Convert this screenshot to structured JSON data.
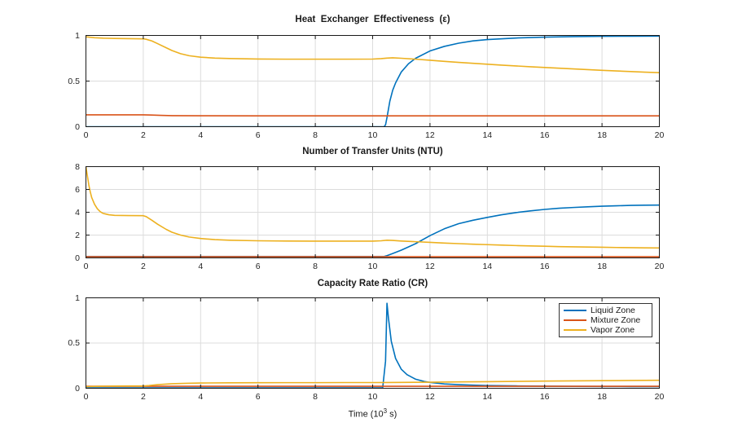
{
  "figure": {
    "xlabel": {
      "prefix": "Time  (10",
      "sup": "3",
      "suffix": "  s)"
    }
  },
  "colors": {
    "liquid": "#0072BD",
    "mixture": "#D95319",
    "vapor": "#EDB120",
    "grid": "#dcdcdc",
    "axis": "#1a1a1a",
    "text": "#262626"
  },
  "legend": {
    "entries": [
      {
        "label": "Liquid Zone",
        "color": "#0072BD"
      },
      {
        "label": "Mixture Zone",
        "color": "#D95319"
      },
      {
        "label": "Vapor Zone",
        "color": "#EDB120"
      }
    ]
  },
  "chart_data": [
    {
      "type": "line",
      "title": "Heat  Exchanger  Effectiveness  (ε)",
      "xlim": [
        0,
        20
      ],
      "ylim": [
        0,
        1
      ],
      "xticks": [
        0,
        2,
        4,
        6,
        8,
        10,
        12,
        14,
        16,
        18,
        20
      ],
      "yticks": [
        0,
        0.5,
        1
      ],
      "grid": true,
      "series": [
        {
          "name": "Liquid Zone",
          "color": "#0072BD",
          "points": [
            [
              0,
              0
            ],
            [
              10.4,
              0
            ],
            [
              10.45,
              0.02
            ],
            [
              10.5,
              0.1
            ],
            [
              10.6,
              0.28
            ],
            [
              10.7,
              0.4
            ],
            [
              10.8,
              0.48
            ],
            [
              11,
              0.6
            ],
            [
              11.25,
              0.69
            ],
            [
              11.5,
              0.75
            ],
            [
              12,
              0.83
            ],
            [
              12.5,
              0.88
            ],
            [
              13,
              0.915
            ],
            [
              13.5,
              0.94
            ],
            [
              14,
              0.955
            ],
            [
              15,
              0.972
            ],
            [
              16,
              0.982
            ],
            [
              17,
              0.987
            ],
            [
              18,
              0.99
            ],
            [
              19,
              0.992
            ],
            [
              20,
              0.993
            ]
          ]
        },
        {
          "name": "Mixture Zone",
          "color": "#D95319",
          "points": [
            [
              0,
              0.13
            ],
            [
              1,
              0.13
            ],
            [
              2,
              0.13
            ],
            [
              2.3,
              0.128
            ],
            [
              2.6,
              0.124
            ],
            [
              3,
              0.121
            ],
            [
              4,
              0.12
            ],
            [
              6,
              0.119
            ],
            [
              8,
              0.119
            ],
            [
              10,
              0.119
            ],
            [
              12,
              0.119
            ],
            [
              14,
              0.119
            ],
            [
              16,
              0.119
            ],
            [
              18,
              0.119
            ],
            [
              20,
              0.119
            ]
          ]
        },
        {
          "name": "Vapor Zone",
          "color": "#EDB120",
          "points": [
            [
              0,
              0.985
            ],
            [
              0.3,
              0.975
            ],
            [
              0.6,
              0.97
            ],
            [
              1,
              0.967
            ],
            [
              1.5,
              0.965
            ],
            [
              2,
              0.963
            ],
            [
              2.1,
              0.958
            ],
            [
              2.3,
              0.94
            ],
            [
              2.5,
              0.91
            ],
            [
              2.8,
              0.865
            ],
            [
              3,
              0.835
            ],
            [
              3.3,
              0.8
            ],
            [
              3.6,
              0.778
            ],
            [
              4,
              0.762
            ],
            [
              4.5,
              0.752
            ],
            [
              5,
              0.747
            ],
            [
              6,
              0.742
            ],
            [
              7,
              0.74
            ],
            [
              8,
              0.74
            ],
            [
              9,
              0.74
            ],
            [
              10,
              0.741
            ],
            [
              10.3,
              0.746
            ],
            [
              10.5,
              0.752
            ],
            [
              10.7,
              0.755
            ],
            [
              11,
              0.75
            ],
            [
              11.5,
              0.74
            ],
            [
              12,
              0.728
            ],
            [
              12.5,
              0.716
            ],
            [
              13,
              0.705
            ],
            [
              13.5,
              0.695
            ],
            [
              14,
              0.685
            ],
            [
              14.5,
              0.675
            ],
            [
              15,
              0.666
            ],
            [
              15.5,
              0.657
            ],
            [
              16,
              0.649
            ],
            [
              16.5,
              0.641
            ],
            [
              17,
              0.633
            ],
            [
              17.5,
              0.626
            ],
            [
              18,
              0.618
            ],
            [
              18.5,
              0.611
            ],
            [
              19,
              0.604
            ],
            [
              19.5,
              0.598
            ],
            [
              20,
              0.592
            ]
          ]
        }
      ]
    },
    {
      "type": "line",
      "title": "Number of Transfer Units (NTU)",
      "xlim": [
        0,
        20
      ],
      "ylim": [
        0,
        8
      ],
      "xticks": [
        0,
        2,
        4,
        6,
        8,
        10,
        12,
        14,
        16,
        18,
        20
      ],
      "yticks": [
        0,
        2,
        4,
        6,
        8
      ],
      "grid": true,
      "series": [
        {
          "name": "Liquid Zone",
          "color": "#0072BD",
          "points": [
            [
              0,
              0.12
            ],
            [
              2,
              0.12
            ],
            [
              4,
              0.12
            ],
            [
              6,
              0.12
            ],
            [
              8,
              0.12
            ],
            [
              10,
              0.12
            ],
            [
              10.4,
              0.12
            ],
            [
              10.5,
              0.2
            ],
            [
              10.7,
              0.38
            ],
            [
              11,
              0.68
            ],
            [
              11.5,
              1.25
            ],
            [
              12,
              1.95
            ],
            [
              12.5,
              2.55
            ],
            [
              13,
              3.0
            ],
            [
              13.5,
              3.3
            ],
            [
              14,
              3.55
            ],
            [
              14.5,
              3.78
            ],
            [
              15,
              3.97
            ],
            [
              15.5,
              4.12
            ],
            [
              16,
              4.25
            ],
            [
              16.5,
              4.35
            ],
            [
              17,
              4.42
            ],
            [
              17.5,
              4.48
            ],
            [
              18,
              4.53
            ],
            [
              18.5,
              4.57
            ],
            [
              19,
              4.6
            ],
            [
              19.5,
              4.62
            ],
            [
              20,
              4.63
            ]
          ]
        },
        {
          "name": "Mixture Zone",
          "color": "#D95319",
          "points": [
            [
              0,
              0.1
            ],
            [
              5,
              0.1
            ],
            [
              10,
              0.1
            ],
            [
              15,
              0.1
            ],
            [
              20,
              0.1
            ]
          ]
        },
        {
          "name": "Vapor Zone",
          "color": "#EDB120",
          "points": [
            [
              0,
              8
            ],
            [
              0.05,
              7.2
            ],
            [
              0.1,
              6.4
            ],
            [
              0.15,
              5.8
            ],
            [
              0.2,
              5.3
            ],
            [
              0.3,
              4.7
            ],
            [
              0.4,
              4.3
            ],
            [
              0.5,
              4.05
            ],
            [
              0.6,
              3.9
            ],
            [
              0.8,
              3.78
            ],
            [
              1,
              3.73
            ],
            [
              1.5,
              3.71
            ],
            [
              2,
              3.7
            ],
            [
              2.1,
              3.62
            ],
            [
              2.3,
              3.3
            ],
            [
              2.5,
              2.95
            ],
            [
              2.8,
              2.5
            ],
            [
              3,
              2.25
            ],
            [
              3.3,
              2.0
            ],
            [
              3.6,
              1.83
            ],
            [
              4,
              1.7
            ],
            [
              4.5,
              1.6
            ],
            [
              5,
              1.55
            ],
            [
              6,
              1.5
            ],
            [
              7,
              1.48
            ],
            [
              8,
              1.47
            ],
            [
              9,
              1.47
            ],
            [
              10,
              1.47
            ],
            [
              10.3,
              1.5
            ],
            [
              10.5,
              1.55
            ],
            [
              10.7,
              1.53
            ],
            [
              11,
              1.48
            ],
            [
              11.5,
              1.42
            ],
            [
              12,
              1.36
            ],
            [
              12.5,
              1.3
            ],
            [
              13,
              1.25
            ],
            [
              13.5,
              1.2
            ],
            [
              14,
              1.16
            ],
            [
              14.5,
              1.12
            ],
            [
              15,
              1.08
            ],
            [
              15.5,
              1.05
            ],
            [
              16,
              1.02
            ],
            [
              16.5,
              0.99
            ],
            [
              17,
              0.97
            ],
            [
              17.5,
              0.95
            ],
            [
              18,
              0.93
            ],
            [
              18.5,
              0.91
            ],
            [
              19,
              0.9
            ],
            [
              19.5,
              0.88
            ],
            [
              20,
              0.87
            ]
          ]
        }
      ]
    },
    {
      "type": "line",
      "title": "Capacity Rate Ratio (CR)",
      "xlim": [
        0,
        20
      ],
      "ylim": [
        0,
        1
      ],
      "xticks": [
        0,
        2,
        4,
        6,
        8,
        10,
        12,
        14,
        16,
        18,
        20
      ],
      "yticks": [
        0,
        0.5,
        1
      ],
      "grid": true,
      "legend_position": "northeast",
      "series": [
        {
          "name": "Liquid Zone",
          "color": "#0072BD",
          "points": [
            [
              0,
              0.004
            ],
            [
              2,
              0.004
            ],
            [
              4,
              0.004
            ],
            [
              6,
              0.004
            ],
            [
              8,
              0.004
            ],
            [
              10,
              0.004
            ],
            [
              10.35,
              0.004
            ],
            [
              10.45,
              0.3
            ],
            [
              10.5,
              0.94
            ],
            [
              10.55,
              0.78
            ],
            [
              10.65,
              0.52
            ],
            [
              10.8,
              0.33
            ],
            [
              11,
              0.21
            ],
            [
              11.2,
              0.15
            ],
            [
              11.5,
              0.1
            ],
            [
              11.8,
              0.075
            ],
            [
              12,
              0.065
            ],
            [
              12.5,
              0.048
            ],
            [
              13,
              0.04
            ],
            [
              13.5,
              0.034
            ],
            [
              14,
              0.03
            ],
            [
              15,
              0.026
            ],
            [
              16,
              0.023
            ],
            [
              17,
              0.021
            ],
            [
              18,
              0.02
            ],
            [
              19,
              0.019
            ],
            [
              20,
              0.018
            ]
          ]
        },
        {
          "name": "Mixture Zone",
          "color": "#D95319",
          "points": [
            [
              0,
              0.022
            ],
            [
              5,
              0.022
            ],
            [
              10,
              0.022
            ],
            [
              15,
              0.022
            ],
            [
              20,
              0.022
            ]
          ]
        },
        {
          "name": "Vapor Zone",
          "color": "#EDB120",
          "points": [
            [
              0,
              0.018
            ],
            [
              0.5,
              0.022
            ],
            [
              1,
              0.024
            ],
            [
              1.5,
              0.025
            ],
            [
              2,
              0.025
            ],
            [
              2.2,
              0.03
            ],
            [
              2.5,
              0.04
            ],
            [
              3,
              0.05
            ],
            [
              3.5,
              0.055
            ],
            [
              4,
              0.058
            ],
            [
              5,
              0.06
            ],
            [
              6,
              0.061
            ],
            [
              7,
              0.062
            ],
            [
              8,
              0.062
            ],
            [
              9,
              0.063
            ],
            [
              10,
              0.063
            ],
            [
              10.5,
              0.064
            ],
            [
              11,
              0.065
            ],
            [
              12,
              0.067
            ],
            [
              13,
              0.07
            ],
            [
              14,
              0.073
            ],
            [
              15,
              0.076
            ],
            [
              16,
              0.079
            ],
            [
              17,
              0.082
            ],
            [
              18,
              0.084
            ],
            [
              19,
              0.086
            ],
            [
              20,
              0.088
            ]
          ]
        }
      ]
    }
  ]
}
